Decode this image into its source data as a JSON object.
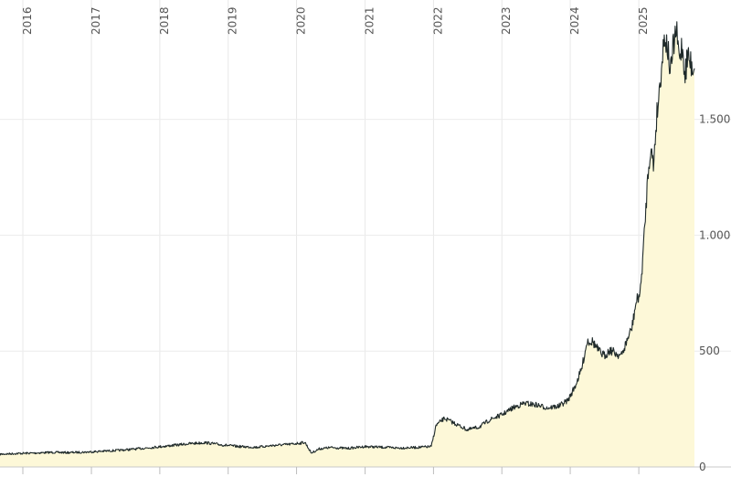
{
  "chart_data": {
    "type": "area",
    "title": "",
    "xlabel": "",
    "ylabel": "",
    "x_range": [
      "2015-09-01",
      "2025-10-25"
    ],
    "ylim": [
      0,
      2000
    ],
    "grid": true,
    "colors": {
      "fill": "#fdf8d8",
      "line": "#1f2a2a",
      "grid": "#ececec",
      "text": "#555555"
    },
    "year_ticks": [
      {
        "label": "2016",
        "date": "2016-01-01"
      },
      {
        "label": "2017",
        "date": "2017-01-01"
      },
      {
        "label": "2018",
        "date": "2018-01-01"
      },
      {
        "label": "2019",
        "date": "2019-01-01"
      },
      {
        "label": "2020",
        "date": "2020-01-01"
      },
      {
        "label": "2021",
        "date": "2021-01-01"
      },
      {
        "label": "2022",
        "date": "2022-01-01"
      },
      {
        "label": "2023",
        "date": "2023-01-01"
      },
      {
        "label": "2024",
        "date": "2024-01-01"
      },
      {
        "label": "2025",
        "date": "2025-01-01"
      }
    ],
    "y_ticks": [
      {
        "label": "0",
        "value": 0
      },
      {
        "label": "500",
        "value": 500
      },
      {
        "label": "1.000",
        "value": 1000
      },
      {
        "label": "1.500",
        "value": 1500
      }
    ],
    "series": [
      {
        "x": [
          "2015-09-01",
          "2015-12-01",
          "2016-03-01",
          "2016-06-01",
          "2016-09-01",
          "2016-12-01",
          "2017-03-01",
          "2017-06-01",
          "2017-09-01",
          "2017-12-01",
          "2018-03-01",
          "2018-06-01",
          "2018-09-01",
          "2018-12-01",
          "2019-03-01",
          "2019-06-01",
          "2019-09-01",
          "2019-12-01",
          "2020-02-15",
          "2020-03-20",
          "2020-05-01",
          "2020-07-01",
          "2020-10-01",
          "2021-01-01",
          "2021-04-01",
          "2021-07-01",
          "2021-10-01",
          "2021-12-20",
          "2022-01-15",
          "2022-03-01",
          "2022-05-01",
          "2022-07-01",
          "2022-09-01",
          "2022-11-01",
          "2023-01-01",
          "2023-03-01",
          "2023-05-01",
          "2023-07-01",
          "2023-09-01",
          "2023-11-01",
          "2023-12-20",
          "2024-01-25",
          "2024-03-01",
          "2024-04-01",
          "2024-05-01",
          "2024-06-01",
          "2024-07-01",
          "2024-08-01",
          "2024-09-01",
          "2024-10-01",
          "2024-11-01",
          "2024-11-25",
          "2024-12-15",
          "2025-01-10",
          "2025-01-30",
          "2025-02-20",
          "2025-03-05",
          "2025-03-20",
          "2025-04-05",
          "2025-04-20",
          "2025-05-05",
          "2025-05-20",
          "2025-06-05",
          "2025-06-20",
          "2025-07-05",
          "2025-07-20",
          "2025-08-05",
          "2025-08-20",
          "2025-09-05",
          "2025-09-20",
          "2025-10-05",
          "2025-10-25"
        ],
        "y": [
          55,
          58,
          60,
          63,
          62,
          64,
          68,
          72,
          78,
          85,
          92,
          100,
          105,
          95,
          88,
          85,
          93,
          98,
          106,
          60,
          78,
          84,
          80,
          88,
          85,
          82,
          84,
          88,
          180,
          210,
          185,
          160,
          172,
          205,
          225,
          255,
          275,
          268,
          255,
          262,
          288,
          345,
          420,
          545,
          540,
          500,
          480,
          505,
          490,
          480,
          550,
          600,
          700,
          760,
          1000,
          1280,
          1380,
          1300,
          1500,
          1620,
          1760,
          1870,
          1800,
          1700,
          1820,
          1880,
          1760,
          1820,
          1700,
          1780,
          1740,
          1720
        ]
      }
    ]
  }
}
